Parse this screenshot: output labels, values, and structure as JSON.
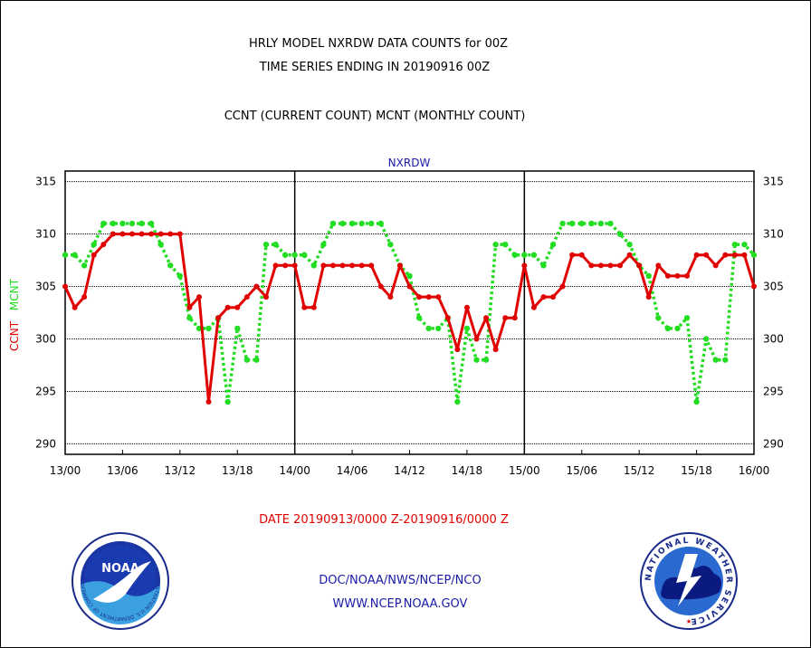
{
  "header": {
    "title_line1": "HRLY MODEL NXRDW DATA COUNTS for 00Z",
    "title_line2": "TIME SERIES ENDING IN 20190916 00Z",
    "subtitle": "CCNT (CURRENT COUNT) MCNT (MONTHLY COUNT)"
  },
  "footer": {
    "date_range": "DATE 20190913/0000 Z-20190916/0000 Z",
    "org_line": "DOC/NOAA/NWS/NCEP/NCO",
    "url": "WWW.NCEP.NOAA.GOV"
  },
  "logos": {
    "left": {
      "name": "NOAA",
      "ring_text": "NATIONAL OCEANIC AND ATMOSPHERIC ADMINISTRATION  U.S. DEPARTMENT OF COMMERCE"
    },
    "right": {
      "ring_text": "NATIONAL WEATHER SERVICE"
    }
  },
  "colors": {
    "ccnt": "#e00000",
    "mcnt": "#22dd22",
    "label_blue": "#1a1aa8"
  },
  "chart_data": {
    "type": "line",
    "title": "NXRDW",
    "ylabel_parts": [
      {
        "text": "CCNT",
        "color": "#e00000"
      },
      {
        "text": "MCNT",
        "color": "#22dd22"
      }
    ],
    "ylim": [
      289,
      316
    ],
    "yticks": [
      290,
      295,
      300,
      305,
      310,
      315
    ],
    "xlim": [
      0,
      72
    ],
    "xtick_labels": [
      "13/00",
      "13/06",
      "13/12",
      "13/18",
      "14/00",
      "14/06",
      "14/12",
      "14/18",
      "15/00",
      "15/06",
      "15/12",
      "15/18",
      "16/00"
    ],
    "xtick_hours": [
      0,
      6,
      12,
      18,
      24,
      30,
      36,
      42,
      48,
      54,
      60,
      66,
      72
    ],
    "day_dividers": [
      24,
      48
    ],
    "grid": true,
    "series": [
      {
        "name": "CCNT",
        "color": "#e00000",
        "style": "solid",
        "x": [
          0,
          1,
          2,
          3,
          4,
          5,
          6,
          7,
          8,
          9,
          10,
          11,
          12,
          13,
          14,
          15,
          16,
          17,
          18,
          19,
          20,
          21,
          22,
          23,
          24,
          25,
          26,
          27,
          28,
          29,
          30,
          31,
          32,
          33,
          34,
          35,
          36,
          37,
          38,
          39,
          40,
          41,
          42,
          43,
          44,
          45,
          46,
          47,
          48,
          49,
          50,
          51,
          52,
          53,
          54,
          55,
          56,
          57,
          58,
          59,
          60,
          61,
          62,
          63,
          64,
          65,
          66,
          67,
          68,
          69,
          70,
          71,
          72
        ],
        "values": [
          305,
          303,
          304,
          308,
          309,
          310,
          310,
          310,
          310,
          310,
          310,
          310,
          310,
          303,
          304,
          294,
          302,
          303,
          303,
          304,
          305,
          304,
          307,
          307,
          307,
          303,
          303,
          307,
          307,
          307,
          307,
          307,
          307,
          305,
          304,
          307,
          305,
          304,
          304,
          304,
          302,
          299,
          303,
          300,
          302,
          299,
          302,
          302,
          307,
          303,
          304,
          304,
          305,
          308,
          308,
          307,
          307,
          307,
          307,
          308,
          307,
          304,
          307,
          306,
          306,
          306,
          308,
          308,
          307,
          308,
          308,
          308,
          305
        ]
      },
      {
        "name": "MCNT",
        "color": "#22dd22",
        "style": "dotted",
        "x": [
          0,
          1,
          2,
          3,
          4,
          5,
          6,
          7,
          8,
          9,
          10,
          11,
          12,
          13,
          14,
          15,
          16,
          17,
          18,
          19,
          20,
          21,
          22,
          23,
          24,
          25,
          26,
          27,
          28,
          29,
          30,
          31,
          32,
          33,
          34,
          35,
          36,
          37,
          38,
          39,
          40,
          41,
          42,
          43,
          44,
          45,
          46,
          47,
          48,
          49,
          50,
          51,
          52,
          53,
          54,
          55,
          56,
          57,
          58,
          59,
          60,
          61,
          62,
          63,
          64,
          65,
          66,
          67,
          68,
          69,
          70,
          71,
          72
        ],
        "values": [
          308,
          308,
          307,
          309,
          311,
          311,
          311,
          311,
          311,
          311,
          309,
          307,
          306,
          302,
          301,
          301,
          302,
          294,
          301,
          298,
          298,
          309,
          309,
          308,
          308,
          308,
          307,
          309,
          311,
          311,
          311,
          311,
          311,
          311,
          309,
          307,
          306,
          302,
          301,
          301,
          302,
          294,
          301,
          298,
          298,
          309,
          309,
          308,
          308,
          308,
          307,
          309,
          311,
          311,
          311,
          311,
          311,
          311,
          310,
          309,
          307,
          306,
          302,
          301,
          301,
          302,
          294,
          300,
          298,
          298,
          309,
          309,
          308
        ]
      }
    ]
  }
}
